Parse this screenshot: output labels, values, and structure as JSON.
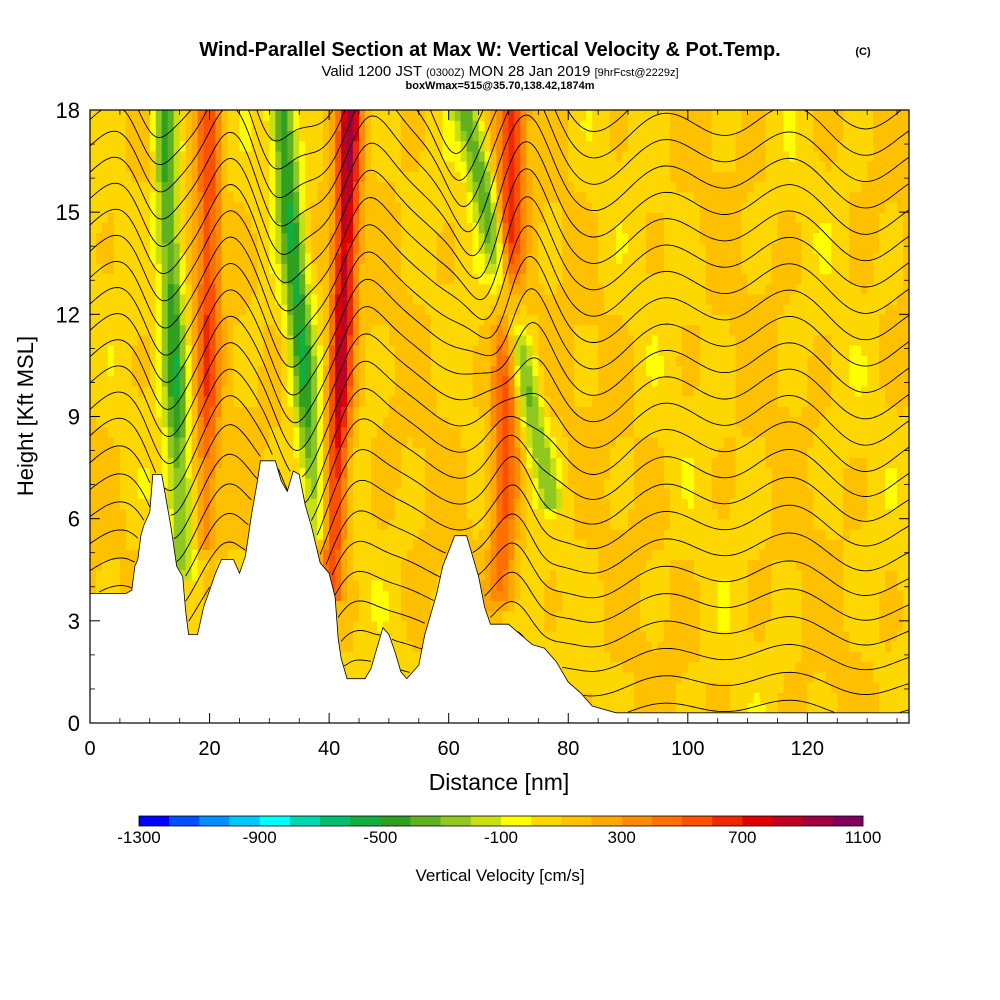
{
  "title": {
    "main": "Wind-Parallel Section at Max W: Vertical Velocity & Pot.Temp.",
    "copyright": "(C)",
    "valid_prefix": "Valid 1200 JST",
    "valid_zulu": "(0300Z)",
    "valid_date": "MON 28 Jan 2019",
    "forecast": "[9hrFcst@2229z]",
    "box": "boxWmax=515@35.70,138.42,1874m"
  },
  "chart_data": {
    "type": "heatmap",
    "title": "Wind-Parallel Section at Max W: Vertical Velocity & Pot.Temp.",
    "xlabel": "Distance [nm]",
    "ylabel": "Height [Kft MSL]",
    "xlim": [
      0,
      137
    ],
    "ylim": [
      0,
      18
    ],
    "x_ticks": [
      0,
      20,
      40,
      60,
      80,
      100,
      120
    ],
    "x_tick_labels": [
      "0",
      "20",
      "40",
      "60",
      "80",
      "100",
      "120"
    ],
    "y_ticks": [
      0,
      3,
      6,
      9,
      12,
      15,
      18
    ],
    "y_tick_labels": [
      "0",
      "3",
      "6",
      "9",
      "12",
      "15",
      "18"
    ],
    "terrain_kft": [
      [
        0,
        3.8
      ],
      [
        6,
        3.8
      ],
      [
        7,
        3.9
      ],
      [
        7.5,
        4.6
      ],
      [
        8,
        4.8
      ],
      [
        8.5,
        5.5
      ],
      [
        9,
        5.8
      ],
      [
        10,
        6.2
      ],
      [
        10.5,
        7.3
      ],
      [
        12,
        7.3
      ],
      [
        12.5,
        6.8
      ],
      [
        13.5,
        5.8
      ],
      [
        14.5,
        4.6
      ],
      [
        15.5,
        4.3
      ],
      [
        16,
        3.3
      ],
      [
        16.5,
        2.6
      ],
      [
        18,
        2.6
      ],
      [
        19,
        3.4
      ],
      [
        20,
        3.9
      ],
      [
        21,
        4.4
      ],
      [
        22,
        4.8
      ],
      [
        24,
        4.8
      ],
      [
        25,
        4.4
      ],
      [
        26,
        4.9
      ],
      [
        27,
        6.1
      ],
      [
        28,
        7.1
      ],
      [
        28.5,
        7.7
      ],
      [
        31,
        7.7
      ],
      [
        32,
        7.1
      ],
      [
        33,
        6.8
      ],
      [
        34,
        7.4
      ],
      [
        35,
        7.3
      ],
      [
        36,
        6.4
      ],
      [
        37,
        5.8
      ],
      [
        38.5,
        4.7
      ],
      [
        40,
        4.4
      ],
      [
        41,
        3.7
      ],
      [
        41.5,
        2.5
      ],
      [
        42,
        1.9
      ],
      [
        43,
        1.3
      ],
      [
        46,
        1.3
      ],
      [
        47,
        1.6
      ],
      [
        48,
        2.2
      ],
      [
        49,
        2.8
      ],
      [
        50,
        2.6
      ],
      [
        51,
        2.1
      ],
      [
        52,
        1.5
      ],
      [
        53,
        1.3
      ],
      [
        55,
        1.7
      ],
      [
        56,
        2.6
      ],
      [
        57,
        3.2
      ],
      [
        58,
        3.8
      ],
      [
        59,
        4.6
      ],
      [
        61,
        5.5
      ],
      [
        63,
        5.5
      ],
      [
        64,
        4.9
      ],
      [
        65,
        4.3
      ],
      [
        66,
        3.4
      ],
      [
        67,
        2.9
      ],
      [
        70,
        2.9
      ],
      [
        72,
        2.6
      ],
      [
        74,
        2.3
      ],
      [
        76,
        2.2
      ],
      [
        78,
        1.8
      ],
      [
        80,
        1.2
      ],
      [
        82,
        0.9
      ],
      [
        84,
        0.5
      ],
      [
        88,
        0.3
      ],
      [
        137,
        0.3
      ]
    ],
    "updrafts": [
      {
        "name": "updraft-1",
        "base_x": 19.5,
        "base_y": 5.2,
        "top_x": 20,
        "top_y": 18,
        "peak_cm_s": 460,
        "halfwidth_nm": 2.0
      },
      {
        "name": "updraft-2",
        "base_x": 40.5,
        "base_y": 3.8,
        "top_x": 43.5,
        "top_y": 18,
        "peak_cm_s": 760,
        "halfwidth_nm": 2.0
      },
      {
        "name": "updraft-3",
        "base_x": 69,
        "base_y": 3.6,
        "top_x": 70.5,
        "top_y": 18,
        "peak_cm_s": 560,
        "halfwidth_nm": 2.3
      }
    ],
    "downdrafts": [
      {
        "name": "downdraft-1",
        "base_x": 15.5,
        "base_y": 4.5,
        "top_x": 12.5,
        "top_y": 18,
        "peak_cm_s": -540,
        "halfwidth_nm": 2.0
      },
      {
        "name": "downdraft-2",
        "base_x": 38,
        "base_y": 5.5,
        "top_x": 32,
        "top_y": 18,
        "peak_cm_s": -560,
        "halfwidth_nm": 2.0
      },
      {
        "name": "downdraft-3",
        "base_x": 77,
        "base_y": 6.5,
        "top_x": 63,
        "top_y": 18,
        "peak_cm_s": -470,
        "halfwidth_nm": 2.2
      }
    ],
    "isentrope_count": 24,
    "colorbar": {
      "label": "Vertical Velocity [cm/s]",
      "levels": [
        -1300,
        -1200,
        -1100,
        -1000,
        -900,
        -800,
        -700,
        -600,
        -500,
        -400,
        -300,
        -200,
        -100,
        0,
        100,
        200,
        300,
        400,
        500,
        600,
        700,
        800,
        900,
        1000,
        1100
      ],
      "colors": [
        "#0000ff",
        "#0050ff",
        "#0090ff",
        "#00c8ff",
        "#00ffff",
        "#00d8b0",
        "#00c070",
        "#10b040",
        "#30a020",
        "#60b020",
        "#90c820",
        "#c8e010",
        "#ffff00",
        "#ffd700",
        "#ffc000",
        "#ffa800",
        "#ff8c00",
        "#ff7000",
        "#ff5000",
        "#f02800",
        "#e00000",
        "#c00020",
        "#a00040",
        "#800060",
        "#600080"
      ],
      "tick_labels": [
        "-1300",
        "-900",
        "-500",
        "-100",
        "300",
        "700",
        "1100"
      ]
    }
  }
}
